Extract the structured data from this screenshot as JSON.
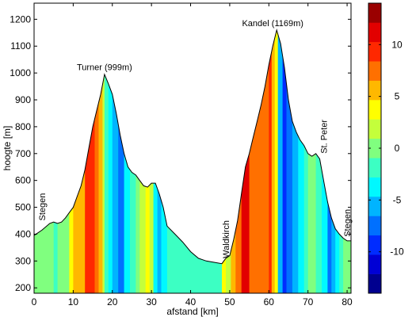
{
  "chart_data": {
    "type": "area",
    "title": "",
    "xlabel": "afstand [km]",
    "ylabel": "hoogte [m]",
    "xlim": [
      0,
      81
    ],
    "ylim": [
      180,
      1260
    ],
    "xticks": [
      0,
      10,
      20,
      30,
      40,
      50,
      60,
      70,
      80
    ],
    "yticks": [
      200,
      300,
      400,
      500,
      600,
      700,
      800,
      900,
      1000,
      1100,
      1200
    ],
    "grid": false,
    "profile": {
      "x": [
        0,
        2,
        4,
        5,
        6,
        7,
        8,
        9,
        10,
        11,
        12,
        13,
        14,
        15,
        16,
        17,
        18,
        19,
        20,
        21,
        22,
        23,
        24,
        25,
        26,
        27,
        28,
        29,
        30,
        31,
        32,
        33,
        34,
        36,
        38,
        40,
        42,
        44,
        46,
        48,
        49,
        50,
        51,
        52,
        53,
        54,
        55,
        56,
        57,
        58,
        59,
        60,
        61,
        62,
        63,
        64,
        65,
        66,
        67,
        68,
        69,
        70,
        71,
        72,
        73,
        74,
        75,
        76,
        77,
        78,
        79,
        80,
        81
      ],
      "y": [
        395,
        415,
        440,
        445,
        440,
        445,
        460,
        480,
        500,
        540,
        580,
        640,
        720,
        800,
        860,
        920,
        995,
        960,
        920,
        850,
        770,
        700,
        650,
        630,
        620,
        600,
        580,
        575,
        590,
        590,
        550,
        500,
        430,
        400,
        370,
        335,
        310,
        300,
        295,
        290,
        310,
        320,
        380,
        450,
        550,
        650,
        700,
        760,
        820,
        880,
        950,
        1030,
        1100,
        1160,
        1110,
        1020,
        900,
        820,
        780,
        750,
        730,
        700,
        690,
        700,
        680,
        600,
        520,
        460,
        420,
        400,
        385,
        375,
        375
      ]
    },
    "color_segments": [
      {
        "x0": 0,
        "x1": 5,
        "value": 0
      },
      {
        "x0": 5,
        "x1": 6,
        "value": -2
      },
      {
        "x0": 6,
        "x1": 9,
        "value": 0
      },
      {
        "x0": 9,
        "x1": 10,
        "value": 3
      },
      {
        "x0": 10,
        "x1": 13,
        "value": 6
      },
      {
        "x0": 13,
        "x1": 15.5,
        "value": 9
      },
      {
        "x0": 15.5,
        "x1": 16.5,
        "value": 7
      },
      {
        "x0": 16.5,
        "x1": 17.5,
        "value": 5
      },
      {
        "x0": 17.5,
        "x1": 18,
        "value": 2
      },
      {
        "x0": 18,
        "x1": 19,
        "value": -2
      },
      {
        "x0": 19,
        "x1": 20,
        "value": -4
      },
      {
        "x0": 20,
        "x1": 21.5,
        "value": -6
      },
      {
        "x0": 21.5,
        "x1": 23,
        "value": -8
      },
      {
        "x0": 23,
        "x1": 24.5,
        "value": -4
      },
      {
        "x0": 24.5,
        "x1": 26,
        "value": -2
      },
      {
        "x0": 26,
        "x1": 27,
        "value": 0
      },
      {
        "x0": 27,
        "x1": 28.5,
        "value": 1
      },
      {
        "x0": 28.5,
        "x1": 29.5,
        "value": 4
      },
      {
        "x0": 29.5,
        "x1": 30.5,
        "value": 1
      },
      {
        "x0": 30.5,
        "x1": 31.5,
        "value": -3
      },
      {
        "x0": 31.5,
        "x1": 32.5,
        "value": -5
      },
      {
        "x0": 32.5,
        "x1": 34,
        "value": -3
      },
      {
        "x0": 34,
        "x1": 48,
        "value": -1
      },
      {
        "x0": 48,
        "x1": 49,
        "value": 3
      },
      {
        "x0": 49,
        "x1": 50.3,
        "value": 1
      },
      {
        "x0": 50.3,
        "x1": 51.5,
        "value": 5
      },
      {
        "x0": 51.5,
        "x1": 53,
        "value": 8
      },
      {
        "x0": 53,
        "x1": 55,
        "value": 11
      },
      {
        "x0": 55,
        "x1": 60,
        "value": 8
      },
      {
        "x0": 60,
        "x1": 60.7,
        "value": 10
      },
      {
        "x0": 60.7,
        "x1": 61.5,
        "value": 6
      },
      {
        "x0": 61.5,
        "x1": 62.3,
        "value": 3
      },
      {
        "x0": 62.3,
        "x1": 63.5,
        "value": -6
      },
      {
        "x0": 63.5,
        "x1": 64.5,
        "value": -10
      },
      {
        "x0": 64.5,
        "x1": 66,
        "value": -8
      },
      {
        "x0": 66,
        "x1": 67.5,
        "value": -6
      },
      {
        "x0": 67.5,
        "x1": 69,
        "value": -4
      },
      {
        "x0": 69,
        "x1": 70,
        "value": -1
      },
      {
        "x0": 70,
        "x1": 72,
        "value": 0
      },
      {
        "x0": 72,
        "x1": 73.5,
        "value": -1
      },
      {
        "x0": 73.5,
        "x1": 75,
        "value": -4
      },
      {
        "x0": 75,
        "x1": 76,
        "value": -7
      },
      {
        "x0": 76,
        "x1": 77,
        "value": -5
      },
      {
        "x0": 77,
        "x1": 78,
        "value": -3
      },
      {
        "x0": 78,
        "x1": 79,
        "value": -1
      },
      {
        "x0": 79,
        "x1": 81,
        "value": 0
      }
    ],
    "annotations": [
      {
        "text": "Turner (999m)",
        "x": 18,
        "y": 1010,
        "rotate": false
      },
      {
        "text": "Kandel (1169m)",
        "x": 61,
        "y": 1175,
        "rotate": false
      },
      {
        "text": "St. Peter",
        "x": 74,
        "y": 700,
        "rotate": true
      },
      {
        "text": "Stegen",
        "x": 2,
        "y": 450,
        "rotate": true
      },
      {
        "text": "Waldkirch",
        "x": 49,
        "y": 310,
        "rotate": true
      },
      {
        "text": "Stegen",
        "x": 80,
        "y": 390,
        "rotate": true
      }
    ],
    "colorbar": {
      "range": [
        -14,
        14
      ],
      "ticks": [
        -10,
        -5,
        0,
        5,
        10
      ],
      "colors": [
        "#00008f",
        "#0000d5",
        "#002cff",
        "#0070ff",
        "#00b4ff",
        "#00f8ff",
        "#3cffc3",
        "#80ff7f",
        "#c4ff3b",
        "#ffff00",
        "#ffb800",
        "#ff7000",
        "#ff2800",
        "#e20000",
        "#9a0000"
      ]
    }
  }
}
